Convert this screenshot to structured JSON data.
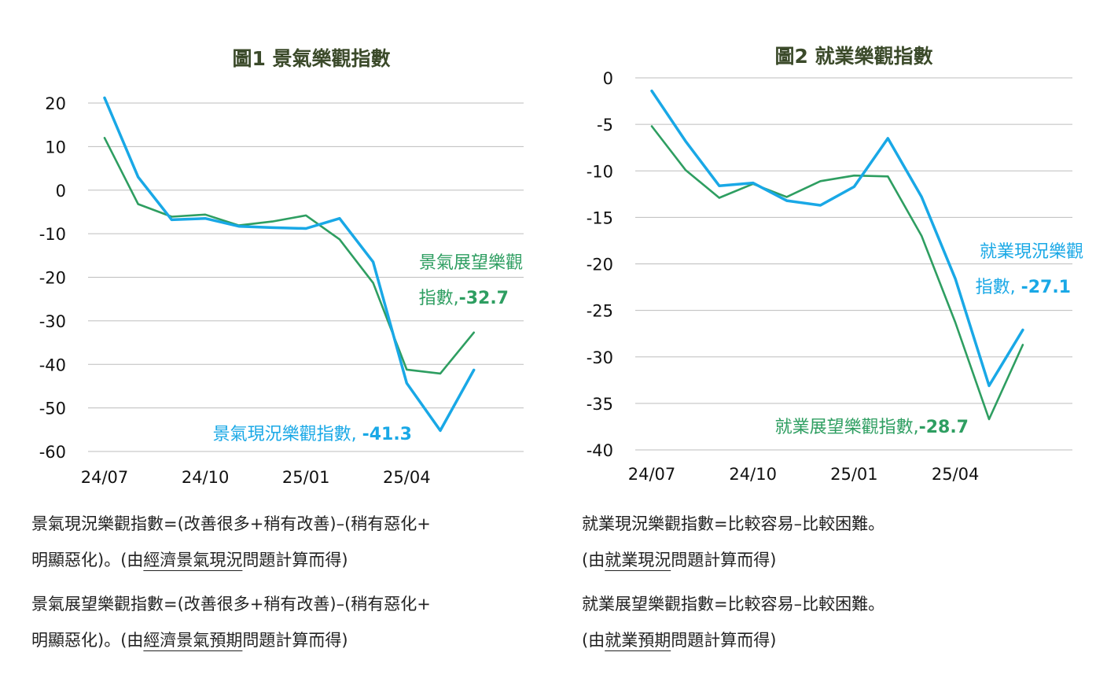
{
  "colors": {
    "current": "#19a8e6",
    "outlook": "#2e9e61",
    "title": "#3b4a2a",
    "grid": "#bdbdbd"
  },
  "chart_data": [
    {
      "type": "line",
      "title": "圖1  景氣樂觀指數",
      "x": [
        "24/07",
        "24/08",
        "24/09",
        "24/10",
        "24/11",
        "24/12",
        "25/01",
        "25/02",
        "25/03",
        "25/04",
        "25/05",
        "25/06"
      ],
      "x_tick_labels": [
        "24/07",
        "24/10",
        "25/01",
        "25/04"
      ],
      "ylim": [
        -60,
        20
      ],
      "y_ticks": [
        20,
        10,
        0,
        -10,
        -20,
        -30,
        -40,
        -50,
        -60
      ],
      "grid": true,
      "series": [
        {
          "key": "current",
          "values": [
            21.2,
            3.0,
            -6.8,
            -6.5,
            -8.3,
            -8.6,
            -8.8,
            -6.5,
            -16.5,
            -44.3,
            -55.2,
            -41.3
          ]
        },
        {
          "key": "outlook",
          "values": [
            12.0,
            -3.2,
            -6.1,
            -5.6,
            -8.1,
            -7.2,
            -5.8,
            -11.3,
            -21.3,
            -41.2,
            -42.1,
            -32.7
          ]
        }
      ],
      "annotations": {
        "outlook_line1": "景氣展望樂觀",
        "outlook_line2_text": "指數,",
        "outlook_line2_value": "-32.7",
        "current_text": "景氣現況樂觀指數, ",
        "current_value": "-41.3"
      }
    },
    {
      "type": "line",
      "title": "圖2  就業樂觀指數",
      "x": [
        "24/07",
        "24/08",
        "24/09",
        "24/10",
        "24/11",
        "24/12",
        "25/01",
        "25/02",
        "25/03",
        "25/04",
        "25/05",
        "25/06"
      ],
      "x_tick_labels": [
        "24/07",
        "24/10",
        "25/01",
        "25/04"
      ],
      "ylim": [
        -40,
        0
      ],
      "y_ticks": [
        0,
        -5,
        -10,
        -15,
        -20,
        -25,
        -30,
        -35,
        -40
      ],
      "grid": true,
      "series": [
        {
          "key": "current",
          "values": [
            -1.4,
            -6.8,
            -11.6,
            -11.3,
            -13.2,
            -13.7,
            -11.7,
            -6.5,
            -12.8,
            -21.6,
            -33.1,
            -27.1
          ]
        },
        {
          "key": "outlook",
          "values": [
            -5.2,
            -9.9,
            -12.9,
            -11.4,
            -12.8,
            -11.1,
            -10.5,
            -10.6,
            -17.0,
            -26.3,
            -36.7,
            -28.7
          ]
        }
      ],
      "annotations": {
        "current_line1": "就業現況樂觀",
        "current_line2_text": "指數, ",
        "current_line2_value": "-27.1",
        "outlook_text": "就業展望樂觀指數,",
        "outlook_value": "-28.7"
      }
    }
  ],
  "notes": {
    "left": {
      "p1_line1": "景氣現況樂觀指數=(改善很多+稍有改善)–(稍有惡化+",
      "p1_line2_pre": "明顯惡化)。(由",
      "p1_line2_ul": "經濟景氣現況",
      "p1_line2_post": "問題計算而得)",
      "p2_line1": "景氣展望樂觀指數=(改善很多+稍有改善)–(稍有惡化+",
      "p2_line2_pre": "明顯惡化)。(由",
      "p2_line2_ul": "經濟景氣預期",
      "p2_line2_post": "問題計算而得)"
    },
    "right": {
      "p1_line1": "就業現況樂觀指數=比較容易–比較困難。",
      "p1_line2_pre": "(由",
      "p1_line2_ul": "就業現況",
      "p1_line2_post": "問題計算而得)",
      "p2_line1": "就業展望樂觀指數=比較容易–比較困難。",
      "p2_line2_pre": "(由",
      "p2_line2_ul": "就業預期",
      "p2_line2_post": "問題計算而得)"
    }
  }
}
